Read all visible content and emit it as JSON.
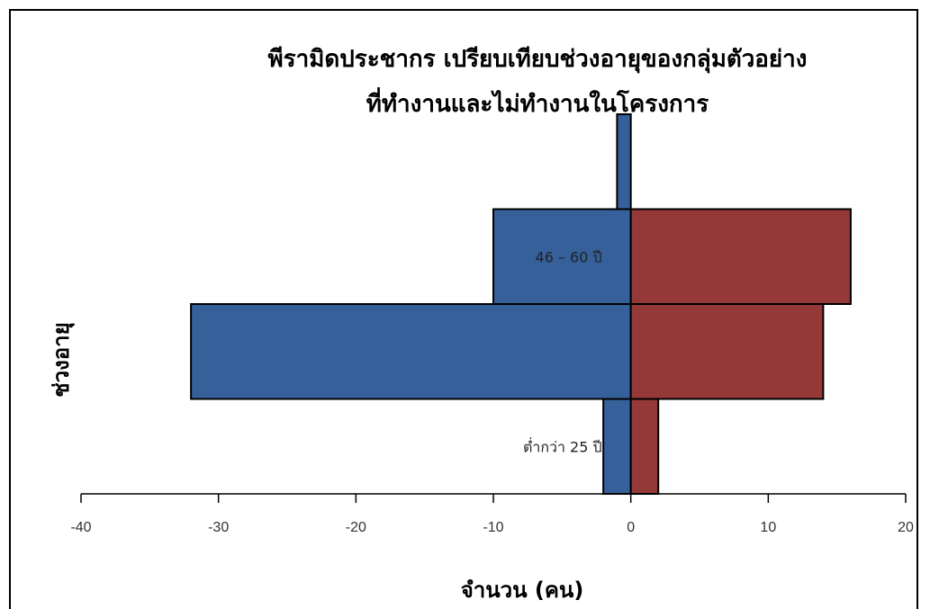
{
  "chart_data": {
    "type": "bar",
    "orientation": "horizontal",
    "title_line1": "พีรามิดประชากร เปรียบเทียบช่วงอายุของกลุ่มตัวอย่าง",
    "title_line2": "ที่ทำงานและไม่ทำงานในโครงการ",
    "xlabel": "จำนวน (คน)",
    "ylabel": "ช่วงอายุ",
    "xlim": [
      -40,
      20
    ],
    "xticks": [
      -40,
      -30,
      -20,
      -10,
      0,
      10,
      20
    ],
    "categories": [
      "ต่ำกว่า 25 ปี",
      "",
      "46 – 60 ปี",
      ""
    ],
    "series": [
      {
        "values": [
          -2,
          -32,
          -10,
          -1
        ],
        "color": "#36609a"
      },
      {
        "values": [
          2,
          14,
          16,
          0
        ],
        "color": "#943838"
      }
    ],
    "bar_labels": [
      {
        "category_index": 0,
        "text": "ต่ำกว่า 25 ปี"
      },
      {
        "category_index": 2,
        "text": "46 – 60 ปี"
      }
    ],
    "grid": false,
    "legend": "none"
  }
}
